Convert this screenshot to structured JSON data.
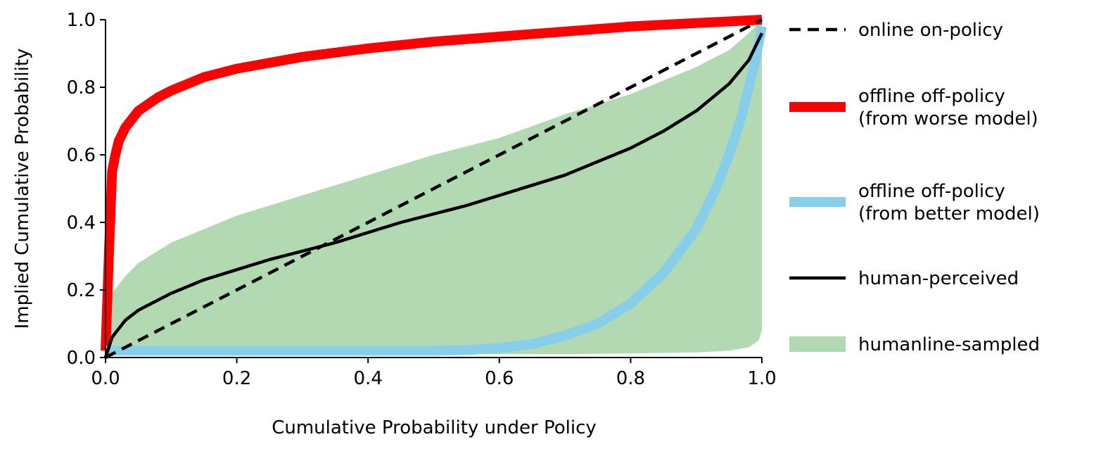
{
  "chart_data": {
    "type": "line",
    "title": "",
    "xlabel": "Cumulative Probability under Policy",
    "ylabel": "Implied Cumulative Probability",
    "xlim": [
      0,
      1
    ],
    "ylim": [
      0,
      1
    ],
    "xticks": [
      "0.0",
      "0.2",
      "0.4",
      "0.6",
      "0.8",
      "1.0"
    ],
    "yticks": [
      "0.0",
      "0.2",
      "0.4",
      "0.6",
      "0.8",
      "1.0"
    ],
    "grid": false,
    "legend_position": "right",
    "colors": {
      "online": "#000000",
      "worse": "#ff0000",
      "better": "#87ceeb",
      "human": "#000000",
      "sampled": "#b2d9b2"
    },
    "legend": [
      {
        "key": "online",
        "lines": [
          "online on-policy"
        ]
      },
      {
        "key": "worse",
        "lines": [
          "offline off-policy",
          "(from worse model)"
        ]
      },
      {
        "key": "better",
        "lines": [
          "offline off-policy",
          "(from better model)"
        ]
      },
      {
        "key": "human",
        "lines": [
          "human-perceived"
        ]
      },
      {
        "key": "sampled",
        "lines": [
          "humanline-sampled"
        ]
      }
    ],
    "series": [
      {
        "key": "online",
        "style": "dashed",
        "x": [
          0,
          1
        ],
        "y": [
          0,
          1
        ]
      },
      {
        "key": "worse",
        "style": "thick",
        "x": [
          0,
          0.005,
          0.01,
          0.015,
          0.02,
          0.03,
          0.05,
          0.08,
          0.1,
          0.15,
          0.2,
          0.3,
          0.4,
          0.5,
          0.6,
          0.7,
          0.8,
          0.9,
          1.0
        ],
        "y": [
          0.02,
          0.3,
          0.55,
          0.6,
          0.64,
          0.68,
          0.73,
          0.77,
          0.79,
          0.83,
          0.855,
          0.89,
          0.915,
          0.935,
          0.95,
          0.965,
          0.98,
          0.99,
          1.0
        ]
      },
      {
        "key": "better",
        "style": "thick",
        "x": [
          0,
          0.1,
          0.2,
          0.3,
          0.4,
          0.5,
          0.55,
          0.6,
          0.65,
          0.7,
          0.75,
          0.8,
          0.85,
          0.9,
          0.93,
          0.95,
          0.97,
          0.99,
          1.0
        ],
        "y": [
          0.02,
          0.02,
          0.02,
          0.02,
          0.02,
          0.02,
          0.022,
          0.028,
          0.04,
          0.065,
          0.1,
          0.16,
          0.25,
          0.38,
          0.5,
          0.6,
          0.72,
          0.88,
          0.98
        ]
      },
      {
        "key": "human",
        "style": "solid",
        "x": [
          0,
          0.01,
          0.03,
          0.05,
          0.1,
          0.15,
          0.2,
          0.25,
          0.3,
          0.35,
          0.4,
          0.45,
          0.5,
          0.55,
          0.6,
          0.65,
          0.7,
          0.75,
          0.8,
          0.85,
          0.9,
          0.95,
          0.98,
          1.0
        ],
        "y": [
          0,
          0.06,
          0.11,
          0.14,
          0.19,
          0.23,
          0.26,
          0.29,
          0.315,
          0.34,
          0.37,
          0.4,
          0.425,
          0.45,
          0.48,
          0.51,
          0.54,
          0.58,
          0.62,
          0.67,
          0.73,
          0.81,
          0.88,
          0.96
        ]
      }
    ],
    "band": {
      "key": "sampled",
      "x": [
        0,
        0.01,
        0.03,
        0.05,
        0.1,
        0.2,
        0.3,
        0.4,
        0.5,
        0.6,
        0.7,
        0.8,
        0.9,
        0.95,
        0.98,
        0.995,
        1.0
      ],
      "y_upper": [
        0.1,
        0.19,
        0.24,
        0.28,
        0.34,
        0.42,
        0.48,
        0.54,
        0.6,
        0.65,
        0.72,
        0.78,
        0.86,
        0.91,
        0.96,
        0.99,
        1.0
      ],
      "y_lower": [
        0.0,
        0.01,
        0.015,
        0.02,
        0.02,
        0.02,
        0.015,
        0.015,
        0.012,
        0.01,
        0.01,
        0.012,
        0.015,
        0.02,
        0.03,
        0.05,
        0.08
      ]
    }
  }
}
